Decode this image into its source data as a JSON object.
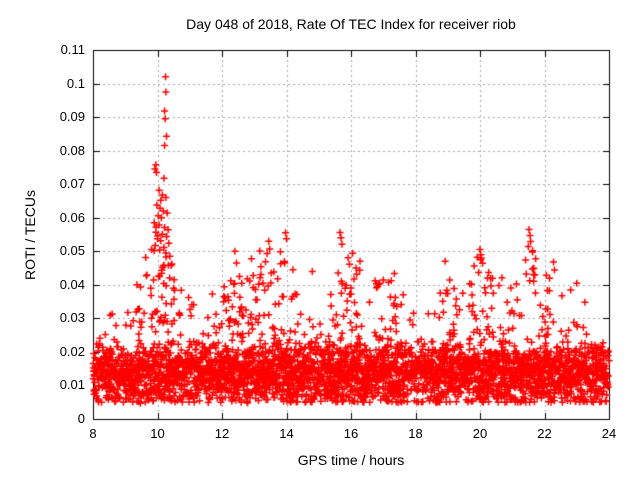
{
  "chart_data": {
    "type": "scatter",
    "title": "Day 048 of 2018, Rate Of TEC Index for receiver riob",
    "xlabel": "GPS time / hours",
    "ylabel": "ROTI / TECUs",
    "xlim": [
      8,
      24
    ],
    "ylim": [
      0,
      0.11
    ],
    "xticks": [
      8,
      10,
      12,
      14,
      16,
      18,
      20,
      22,
      24
    ],
    "yticks": [
      0,
      0.01,
      0.02,
      0.03,
      0.04,
      0.05,
      0.06,
      0.07,
      0.08,
      0.09,
      0.1,
      0.11
    ],
    "grid": true,
    "grid_style": "dashed",
    "legend": false,
    "marker": "plus",
    "marker_size_px": 7,
    "marker_color": "#ff0000",
    "grid_color": "#a9a9a9",
    "axis_color": "#000000",
    "background": "#ffffff",
    "peak_points": [
      [
        9.92,
        0.0745
      ],
      [
        9.95,
        0.0758
      ],
      [
        9.97,
        0.0735
      ],
      [
        10.25,
        0.102
      ],
      [
        10.26,
        0.0975
      ],
      [
        10.22,
        0.0918
      ],
      [
        10.24,
        0.0895
      ],
      [
        10.28,
        0.0843
      ],
      [
        10.22,
        0.0815
      ],
      [
        10.2,
        0.0718
      ],
      [
        10.05,
        0.0682
      ],
      [
        10.15,
        0.0668
      ],
      [
        10.26,
        0.066
      ],
      [
        10.1,
        0.0652
      ],
      [
        9.98,
        0.0638
      ],
      [
        10.08,
        0.0628
      ],
      [
        10.18,
        0.062
      ],
      [
        10.3,
        0.0614
      ],
      [
        10.02,
        0.0606
      ],
      [
        10.12,
        0.06
      ],
      [
        9.9,
        0.0585
      ],
      [
        10.05,
        0.0578
      ],
      [
        10.22,
        0.0571
      ],
      [
        10.33,
        0.0564
      ],
      [
        9.95,
        0.0557
      ],
      [
        10.15,
        0.0551
      ],
      [
        10.28,
        0.0544
      ],
      [
        10.0,
        0.0537
      ],
      [
        10.1,
        0.0531
      ],
      [
        10.35,
        0.0524
      ],
      [
        9.93,
        0.0517
      ],
      [
        10.2,
        0.0511
      ],
      [
        10.07,
        0.0504
      ],
      [
        12.4,
        0.05
      ],
      [
        12.45,
        0.0465
      ],
      [
        13.45,
        0.053
      ],
      [
        13.48,
        0.0507
      ],
      [
        13.97,
        0.0555
      ],
      [
        14.0,
        0.0537
      ],
      [
        14.2,
        0.0445
      ],
      [
        14.8,
        0.044
      ],
      [
        15.66,
        0.0556
      ],
      [
        15.69,
        0.054
      ],
      [
        15.72,
        0.0521
      ],
      [
        16.05,
        0.0494
      ],
      [
        16.28,
        0.047
      ],
      [
        18.92,
        0.047
      ],
      [
        20.0,
        0.0505
      ],
      [
        20.04,
        0.048
      ],
      [
        20.08,
        0.0464
      ],
      [
        21.52,
        0.0565
      ],
      [
        21.55,
        0.0547
      ],
      [
        21.57,
        0.0529
      ],
      [
        21.5,
        0.0514
      ],
      [
        22.28,
        0.0468
      ],
      [
        22.31,
        0.0444
      ],
      [
        23.0,
        0.0405
      ]
    ],
    "baseline_band": {
      "note": "Dense quasi-continuous band of ROTI samples every ~30 s from 8 h to 24 h; bulk of values 0.005-0.023 TECU centred near 0.013, with column-like bursts whose upper envelope (TECU) is listed per 0.5 h below.",
      "columns": 1400,
      "points_per_column": 2,
      "band_min": 0.0045,
      "band_half": 0.0095,
      "tail_fraction": 0.42,
      "tail_power": 2.0,
      "spike_fill_threshold": 0.042,
      "spike_fill_fraction": 0.55,
      "spike_fill_power": 1.1,
      "envelope_start_hour": 8,
      "envelope_step": 0.5,
      "envelope": [
        0.026,
        0.031,
        0.035,
        0.044,
        0.06,
        0.046,
        0.038,
        0.033,
        0.044,
        0.042,
        0.05,
        0.053,
        0.048,
        0.038,
        0.036,
        0.046,
        0.05,
        0.04,
        0.044,
        0.044,
        0.037,
        0.034,
        0.046,
        0.039,
        0.051,
        0.041,
        0.044,
        0.053,
        0.046,
        0.037,
        0.041,
        0.034,
        0.031
      ],
      "seed": 48
    }
  }
}
